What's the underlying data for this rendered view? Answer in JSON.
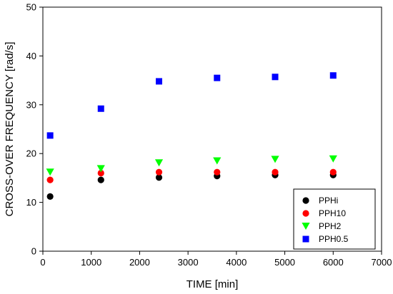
{
  "chart_data": {
    "type": "scatter",
    "title": "",
    "xlabel": "TIME [min]",
    "ylabel": "CROSS-OVER FREQUENCY [rad/s]",
    "xlim": [
      0,
      7000
    ],
    "ylim": [
      0,
      50
    ],
    "xticks": [
      0,
      1000,
      2000,
      3000,
      4000,
      5000,
      6000,
      7000
    ],
    "yticks": [
      0,
      10,
      20,
      30,
      40,
      50
    ],
    "grid": false,
    "legend_position": "bottom-right",
    "series": [
      {
        "name": "PPHi",
        "marker": "circle",
        "color": "#000000",
        "x": [
          150,
          1200,
          2400,
          3600,
          4800,
          6000
        ],
        "y": [
          11.2,
          14.6,
          15.1,
          15.4,
          15.6,
          15.6
        ]
      },
      {
        "name": "PPH10",
        "marker": "circle",
        "color": "#ff0000",
        "x": [
          150,
          1200,
          2400,
          3600,
          4800,
          6000
        ],
        "y": [
          14.6,
          16.0,
          16.2,
          16.2,
          16.2,
          16.2
        ]
      },
      {
        "name": "PPH2",
        "marker": "triangle-down",
        "color": "#00ff00",
        "x": [
          150,
          1200,
          2400,
          3600,
          4800,
          6000
        ],
        "y": [
          16.2,
          16.9,
          18.1,
          18.5,
          18.8,
          18.9
        ]
      },
      {
        "name": "PPH0.5",
        "marker": "square",
        "color": "#0000ff",
        "x": [
          150,
          1200,
          2400,
          3600,
          4800,
          6000
        ],
        "y": [
          23.7,
          29.2,
          34.8,
          35.5,
          35.7,
          36.0
        ]
      }
    ]
  }
}
